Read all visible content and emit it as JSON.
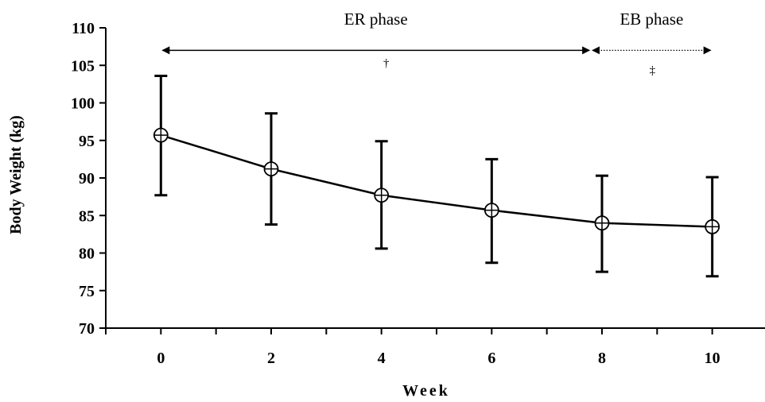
{
  "chart_data": {
    "type": "line",
    "xlabel": "Week",
    "ylabel": "Body Weight (kg)",
    "x": [
      0,
      2,
      4,
      6,
      8,
      10
    ],
    "x_ticks": [
      "0",
      "2",
      "4",
      "6",
      "8",
      "10"
    ],
    "y_ticks": [
      "70",
      "75",
      "80",
      "85",
      "90",
      "95",
      "100",
      "105",
      "110"
    ],
    "ylim": [
      70,
      110
    ],
    "xlim": [
      -1,
      11
    ],
    "grid": false,
    "series": [
      {
        "values": [
          95.7,
          91.2,
          87.7,
          85.7,
          84.0,
          83.5
        ],
        "error_low": [
          87.7,
          83.8,
          80.6,
          78.7,
          77.5,
          76.9
        ],
        "error_high": [
          103.6,
          98.6,
          94.9,
          92.5,
          90.3,
          90.1
        ],
        "marker": "circle-plus",
        "color": "#000000"
      }
    ],
    "annotations": [
      {
        "label": "ER phase",
        "x_start": 0,
        "x_end": 7.8,
        "y": 107,
        "style": "solid",
        "symbol": "†"
      },
      {
        "label": "EB phase",
        "x_start": 7.8,
        "x_end": 10,
        "y": 107,
        "style": "dotted",
        "symbol": "‡"
      }
    ]
  }
}
